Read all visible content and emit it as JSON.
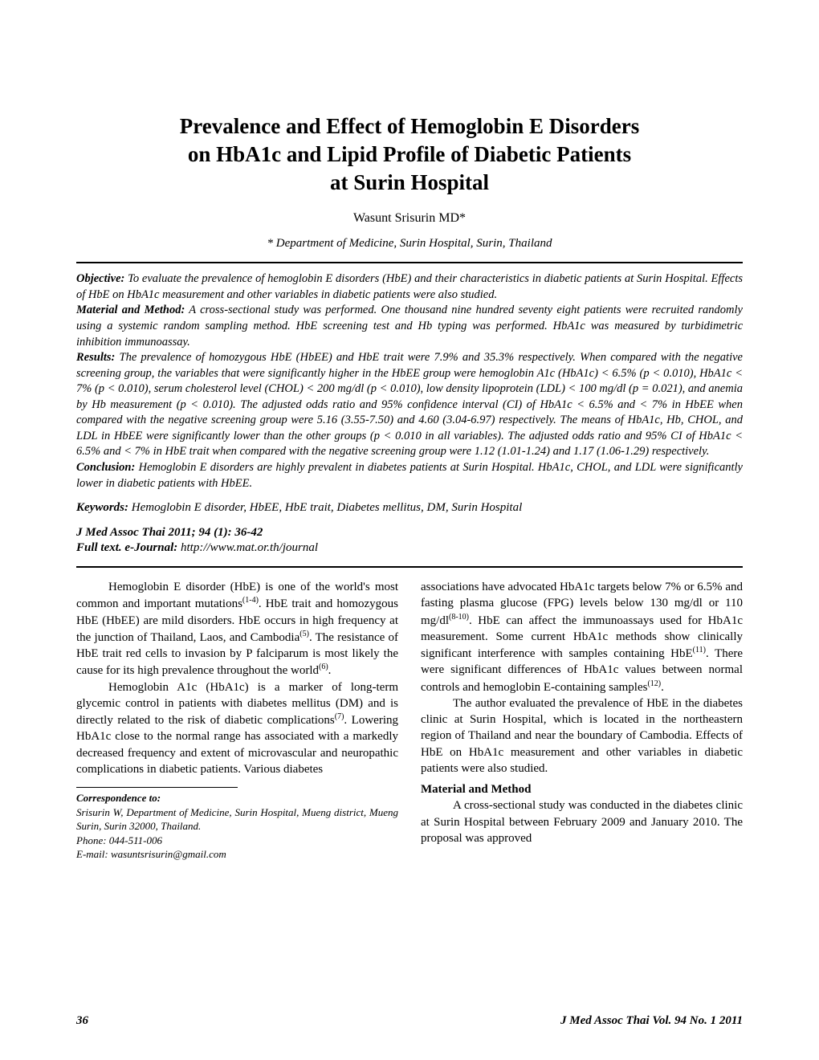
{
  "title_line1": "Prevalence and Effect of Hemoglobin E Disorders",
  "title_line2": "on HbA1c and Lipid Profile of Diabetic Patients",
  "title_line3": "at Surin Hospital",
  "author": "Wasunt Srisurin MD*",
  "affiliation": "* Department of Medicine, Surin Hospital, Surin, Thailand",
  "abstract": {
    "objective_label": "Objective:",
    "objective_text": " To evaluate the prevalence of hemoglobin E disorders (HbE) and their characteristics in diabetic patients at Surin Hospital. Effects of HbE on HbA1c measurement and other variables in diabetic patients were also studied.",
    "material_label": "Material and Method:",
    "material_text": " A cross-sectional study was performed. One thousand nine hundred seventy eight patients were recruited randomly using a systemic random sampling method. HbE screening test and Hb typing was performed. HbA1c was measured by turbidimetric inhibition immunoassay.",
    "results_label": "Results:",
    "results_text": " The prevalence of homozygous HbE (HbEE) and HbE trait were 7.9% and 35.3% respectively. When compared with the negative screening group, the variables that were significantly higher in the HbEE group were hemoglobin A1c (HbA1c) < 6.5% (p < 0.010), HbA1c < 7% (p < 0.010), serum cholesterol level (CHOL) < 200 mg/dl (p < 0.010), low density lipoprotein (LDL) < 100 mg/dl (p = 0.021), and anemia by Hb measurement (p < 0.010). The adjusted odds ratio and 95% confidence interval (CI) of HbA1c < 6.5% and < 7% in HbEE when compared with the negative screening group were 5.16 (3.55-7.50) and 4.60 (3.04-6.97) respectively. The means of HbA1c, Hb, CHOL, and LDL in HbEE were significantly lower than the other groups (p < 0.010 in all variables). The adjusted odds ratio and 95% CI of HbA1c < 6.5% and < 7% in HbE trait when compared with the negative screening group were 1.12 (1.01-1.24) and 1.17 (1.06-1.29) respectively.",
    "conclusion_label": "Conclusion:",
    "conclusion_text": " Hemoglobin E disorders are highly prevalent in diabetes patients at Surin Hospital. HbA1c, CHOL, and LDL were significantly lower in diabetic patients with HbEE."
  },
  "keywords_label": "Keywords:",
  "keywords_text": " Hemoglobin E disorder, HbEE, HbE trait, Diabetes mellitus, DM, Surin Hospital",
  "citation": "J Med Assoc Thai 2011; 94 (1): 36-42",
  "ejournal_label": "Full text. e-Journal:",
  "ejournal_url": " http://www.mat.or.th/journal",
  "body": {
    "left": {
      "p1a": "Hemoglobin E disorder (HbE) is one of the world's most common and important mutations",
      "p1_ref1": "(1-4)",
      "p1b": ". HbE trait and homozygous HbE (HbEE) are mild disorders. HbE occurs in high frequency at the junction of Thailand, Laos, and Cambodia",
      "p1_ref2": "(5)",
      "p1c": ". The resistance of HbE trait red cells to invasion by P falciparum is most likely the cause for its high prevalence throughout the world",
      "p1_ref3": "(6)",
      "p1d": ".",
      "p2a": "Hemoglobin A1c (HbA1c) is a marker of long-term glycemic control in patients with diabetes mellitus (DM) and is directly related to the risk of diabetic complications",
      "p2_ref1": "(7)",
      "p2b": ". Lowering HbA1c close to the normal range has associated with a markedly decreased frequency and extent of microvascular and neuropathic complications in diabetic patients. Various diabetes"
    },
    "right": {
      "p1a": "associations have advocated HbA1c targets below 7% or 6.5% and fasting plasma glucose (FPG) levels below 130 mg/dl or 110 mg/dl",
      "p1_ref1": "(8-10)",
      "p1b": ". HbE can affect the immunoassays used for HbA1c measurement. Some current HbA1c methods show clinically significant interference with samples containing HbE",
      "p1_ref2": "(11)",
      "p1c": ". There were significant differences of HbA1c values between normal controls and hemoglobin E-containing samples",
      "p1_ref3": "(12)",
      "p1d": ".",
      "p2": "The author evaluated the prevalence of HbE in the diabetes clinic at Surin Hospital, which is located in the northeastern region of Thailand and near the boundary of Cambodia. Effects of HbE on HbA1c measurement and other variables in diabetic patients were also studied.",
      "section_head": "Material and Method",
      "p3": "A cross-sectional study was conducted in the diabetes clinic at Surin Hospital between February 2009 and January 2010. The proposal was approved"
    }
  },
  "correspondence": {
    "head": "Correspondence to:",
    "lines": "Srisurin W, Department of Medicine, Surin Hospital, Mueng district, Mueng Surin, Surin 32000, Thailand.",
    "phone": "Phone: 044-511-006",
    "email": "E-mail: wasuntsrisurin@gmail.com"
  },
  "footer": {
    "page": "36",
    "journal": "J Med Assoc Thai Vol. 94 No. 1  2011"
  }
}
